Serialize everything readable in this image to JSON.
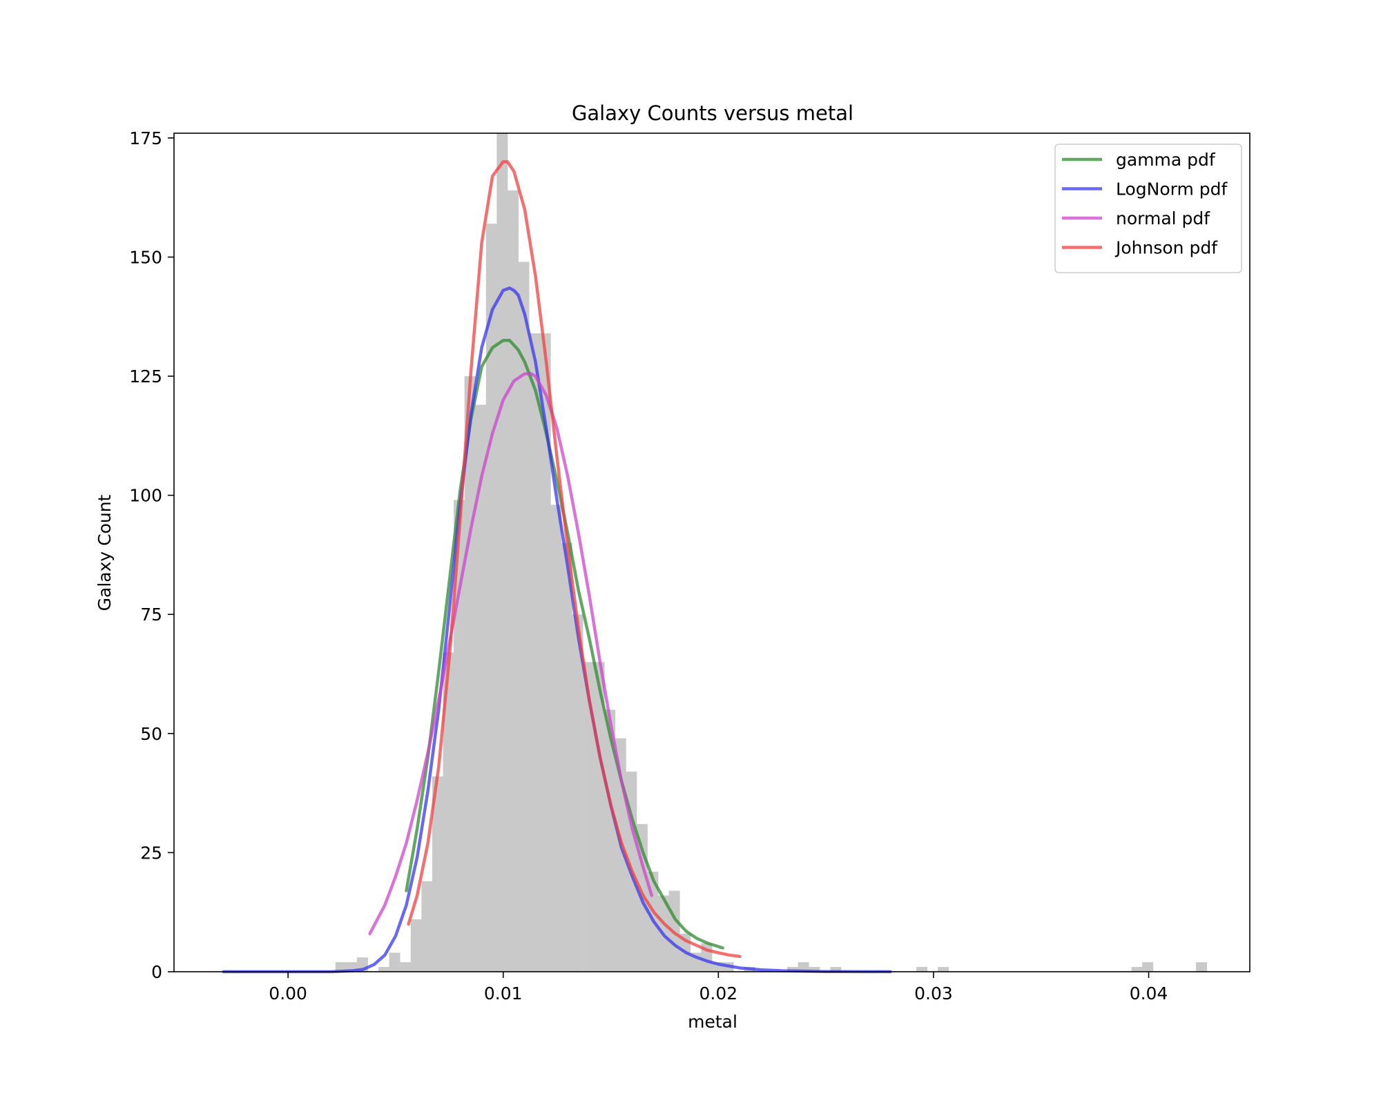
{
  "chart_data": {
    "type": "histogram",
    "title": "Galaxy Counts versus metal",
    "xlabel": "metal",
    "ylabel": "Galaxy Count",
    "xlim": [
      -0.0053,
      0.0447
    ],
    "ylim": [
      0,
      176
    ],
    "xticks": [
      {
        "value": 0.0,
        "label": "0.00"
      },
      {
        "value": 0.01,
        "label": "0.01"
      },
      {
        "value": 0.02,
        "label": "0.02"
      },
      {
        "value": 0.03,
        "label": "0.03"
      },
      {
        "value": 0.04,
        "label": "0.04"
      }
    ],
    "yticks": [
      {
        "value": 0,
        "label": "0"
      },
      {
        "value": 25,
        "label": "25"
      },
      {
        "value": 50,
        "label": "50"
      },
      {
        "value": 75,
        "label": "75"
      },
      {
        "value": 100,
        "label": "100"
      },
      {
        "value": 125,
        "label": "125"
      },
      {
        "value": 150,
        "label": "150"
      },
      {
        "value": 175,
        "label": "175"
      }
    ],
    "histogram": {
      "color": "#c9c9c9",
      "bin_width": 0.0005,
      "bin_starts": [
        0.0022,
        0.0027,
        0.0032,
        0.0042,
        0.0047,
        0.0052,
        0.0057,
        0.0062,
        0.0067,
        0.0072,
        0.0077,
        0.0082,
        0.0087,
        0.0092,
        0.0097,
        0.0102,
        0.0107,
        0.0112,
        0.0117,
        0.0122,
        0.0127,
        0.0132,
        0.0137,
        0.0142,
        0.0147,
        0.0152,
        0.0157,
        0.0162,
        0.0167,
        0.0172,
        0.0177,
        0.0182,
        0.0187,
        0.0192,
        0.0197,
        0.0202,
        0.0212,
        0.0232,
        0.0237,
        0.0242,
        0.0252,
        0.0292,
        0.0302,
        0.0392,
        0.0397,
        0.0422
      ],
      "counts": [
        2,
        2,
        3,
        1,
        4,
        2,
        11,
        19,
        41,
        67,
        99,
        125,
        119,
        157,
        176,
        164,
        149,
        134,
        134,
        98,
        90,
        75,
        65,
        65,
        55,
        49,
        42,
        31,
        21,
        16,
        17,
        8,
        4,
        6,
        2,
        2,
        1,
        1,
        2,
        1,
        1,
        1,
        1,
        1,
        2,
        2
      ]
    },
    "legend": {
      "placement": "top-right"
    },
    "series": [
      {
        "name": "gamma pdf",
        "color": "#2e8b2e",
        "x": [
          0.0055,
          0.006,
          0.0065,
          0.007,
          0.0075,
          0.008,
          0.0085,
          0.009,
          0.0095,
          0.01,
          0.0103,
          0.0107,
          0.011,
          0.0115,
          0.012,
          0.0125,
          0.013,
          0.0135,
          0.014,
          0.0145,
          0.015,
          0.0155,
          0.016,
          0.0165,
          0.017,
          0.0175,
          0.018,
          0.0185,
          0.019,
          0.0195,
          0.0202
        ],
        "y": [
          17,
          30,
          45,
          63,
          82,
          101,
          116,
          127,
          131,
          132.5,
          132.5,
          130.5,
          128,
          122,
          113,
          103,
          92,
          80,
          70,
          59,
          49,
          40,
          32,
          25,
          19,
          15,
          11,
          8.5,
          7,
          6,
          5
        ]
      },
      {
        "name": "LogNorm pdf",
        "color": "#3535ee",
        "x": [
          -0.003,
          0.0,
          0.002,
          0.003,
          0.0035,
          0.004,
          0.0045,
          0.005,
          0.0055,
          0.006,
          0.0065,
          0.007,
          0.0075,
          0.008,
          0.0085,
          0.009,
          0.0095,
          0.01,
          0.0103,
          0.0105,
          0.0107,
          0.011,
          0.0115,
          0.012,
          0.0125,
          0.013,
          0.0135,
          0.014,
          0.0145,
          0.015,
          0.0155,
          0.016,
          0.0165,
          0.017,
          0.0175,
          0.018,
          0.0185,
          0.019,
          0.0195,
          0.02,
          0.021,
          0.022,
          0.023,
          0.025,
          0.028
        ],
        "y": [
          0,
          0,
          0,
          0.2,
          0.5,
          1.5,
          3.5,
          7.5,
          14,
          24,
          38,
          55,
          76,
          98,
          117,
          131,
          139,
          143,
          143.5,
          143,
          142,
          138,
          128,
          114,
          99,
          85,
          70,
          57,
          45,
          35,
          26,
          20,
          14.5,
          10.5,
          7.5,
          5.5,
          4,
          3,
          2.2,
          1.6,
          0.8,
          0.4,
          0.2,
          0.05,
          0
        ]
      },
      {
        "name": "normal pdf",
        "color": "#cc44cc",
        "x": [
          0.0038,
          0.0045,
          0.005,
          0.0055,
          0.006,
          0.0065,
          0.007,
          0.0075,
          0.008,
          0.0085,
          0.009,
          0.0095,
          0.01,
          0.0105,
          0.011,
          0.0113,
          0.0115,
          0.012,
          0.0125,
          0.013,
          0.0135,
          0.014,
          0.0145,
          0.015,
          0.0155,
          0.016,
          0.0165,
          0.0169
        ],
        "y": [
          8,
          14,
          20,
          27,
          36,
          46,
          57,
          69,
          81,
          93,
          104,
          113,
          120,
          124,
          125.5,
          125.5,
          125,
          121,
          114,
          104,
          92,
          79,
          65,
          52,
          40,
          30,
          22,
          16
        ]
      },
      {
        "name": "Johnson pdf",
        "color": "#f04040",
        "x": [
          0.0056,
          0.006,
          0.0065,
          0.007,
          0.0075,
          0.008,
          0.0085,
          0.009,
          0.0095,
          0.01,
          0.0102,
          0.0105,
          0.011,
          0.0115,
          0.012,
          0.0125,
          0.013,
          0.0135,
          0.014,
          0.0145,
          0.015,
          0.0155,
          0.016,
          0.0165,
          0.017,
          0.0175,
          0.018,
          0.0185,
          0.019,
          0.0195,
          0.02,
          0.0205,
          0.021
        ],
        "y": [
          10,
          16,
          27,
          43,
          66,
          95,
          126,
          153,
          167,
          170,
          170,
          168,
          160,
          146,
          128,
          108,
          89,
          72,
          57,
          45,
          35,
          27,
          21,
          16,
          12.5,
          10,
          8,
          6.5,
          5.5,
          4.5,
          4,
          3.5,
          3.2
        ]
      }
    ]
  }
}
